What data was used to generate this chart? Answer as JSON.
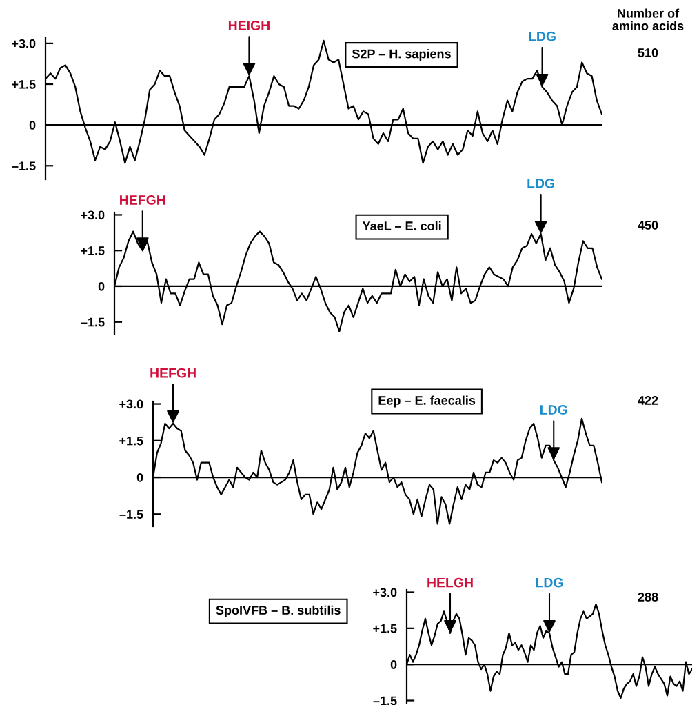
{
  "chart_data": [
    {
      "type": "line",
      "title": "S2P – H. sapiens",
      "color": "#000000",
      "ylim": [
        -2.0,
        3.2
      ],
      "tick_labels": "y",
      "yticks": [
        {
          "value": 3.0,
          "label": "+3.0"
        },
        {
          "value": 1.5,
          "label": "+1.5"
        },
        0,
        {
          "value": -1.5,
          "label": "–1.5"
        }
      ],
      "ref_lines": [
        {
          "axis": "y",
          "value": 0,
          "color": "#000000"
        }
      ],
      "categories": [
        null,
        null,
        null,
        null,
        null,
        null,
        null,
        null,
        null,
        null,
        null,
        null,
        null,
        null,
        null,
        null,
        null,
        null,
        null,
        null,
        null,
        null,
        null,
        null,
        null,
        null,
        null,
        null,
        null,
        null,
        null,
        null,
        null,
        null,
        null,
        null,
        null,
        null,
        null,
        null,
        null,
        null,
        null,
        null,
        null,
        null,
        null,
        null,
        null,
        null,
        null,
        null,
        null,
        null,
        null,
        null,
        null,
        null,
        null,
        null,
        null,
        null,
        null,
        null,
        null,
        null,
        null,
        null,
        null,
        null,
        null,
        null,
        null,
        null,
        null,
        null,
        null,
        null,
        null,
        null,
        null,
        null,
        null,
        null,
        null,
        null,
        null,
        null,
        null,
        null,
        null,
        null,
        null,
        null,
        null,
        null,
        null,
        null,
        null,
        null,
        null,
        null,
        null,
        null,
        null,
        null,
        null,
        null,
        null,
        null,
        null,
        null,
        null
      ],
      "values": [
        1.7,
        1.9,
        1.7,
        2.1,
        2.2,
        1.9,
        1.4,
        0.5,
        -0.1,
        -0.6,
        -1.3,
        -0.8,
        -0.9,
        -0.6,
        0.1,
        -0.6,
        -1.4,
        -0.8,
        -1.3,
        -0.6,
        0.2,
        1.3,
        1.5,
        2.0,
        1.8,
        1.8,
        1.2,
        0.7,
        -0.2,
        -0.4,
        -0.6,
        -0.8,
        -1.1,
        -0.5,
        0.2,
        0.4,
        0.8,
        1.4,
        1.4,
        1.4,
        1.4,
        1.8,
        0.9,
        -0.3,
        0.7,
        1.2,
        1.8,
        1.5,
        1.4,
        0.7,
        0.7,
        0.6,
        0.9,
        1.4,
        2.2,
        2.4,
        3.1,
        2.4,
        2.3,
        2.4,
        1.5,
        0.6,
        0.7,
        0.2,
        0.5,
        0.4,
        -0.5,
        -0.7,
        -0.3,
        -0.6,
        0.2,
        0.2,
        0.6,
        -0.3,
        -0.5,
        -0.5,
        -1.4,
        -0.8,
        -0.6,
        -0.9,
        -0.6,
        -1.1,
        -0.7,
        -1.1,
        -0.9,
        -0.2,
        -0.4,
        0.5,
        -0.3,
        -0.6,
        -0.2,
        -0.7,
        0.2,
        0.9,
        0.5,
        1.2,
        1.6,
        1.7,
        1.7,
        2.0,
        1.4,
        1.2,
        0.9,
        0.7,
        0.0,
        0.7,
        1.2,
        1.4,
        2.3,
        1.9,
        1.8,
        0.9,
        0.4
      ],
      "annotations": [
        "HEIGH",
        "LDG",
        "Number of\namino acids",
        "510"
      ]
    },
    {
      "type": "line",
      "title": "YaeL – E. coli",
      "color": "#000000",
      "ylim": [
        -2.0,
        3.1
      ],
      "tick_labels": "y",
      "yticks": [
        {
          "value": 3.0,
          "label": "+3.0"
        },
        {
          "value": 1.5,
          "label": "+1.5"
        },
        0,
        {
          "value": -1.5,
          "label": "–1.5"
        }
      ],
      "ref_lines": [
        {
          "axis": "y",
          "value": 0,
          "color": "#000000"
        }
      ],
      "categories": [
        null,
        null,
        null,
        null,
        null,
        null,
        null,
        null,
        null,
        null,
        null,
        null,
        null,
        null,
        null,
        null,
        null,
        null,
        null,
        null,
        null,
        null,
        null,
        null,
        null,
        null,
        null,
        null,
        null,
        null,
        null,
        null,
        null,
        null,
        null,
        null,
        null,
        null,
        null,
        null,
        null,
        null,
        null,
        null,
        null,
        null,
        null,
        null,
        null,
        null,
        null,
        null,
        null,
        null,
        null,
        null,
        null,
        null,
        null,
        null,
        null,
        null,
        null,
        null,
        null,
        null,
        null,
        null,
        null,
        null,
        null,
        null,
        null,
        null,
        null,
        null,
        null,
        null,
        null,
        null,
        null,
        null,
        null,
        null,
        null,
        null,
        null,
        null,
        null,
        null,
        null,
        null,
        null,
        null,
        null,
        null,
        null,
        null,
        null,
        null,
        null,
        null,
        null,
        null,
        null
      ],
      "values": [
        0.0,
        0.8,
        1.2,
        1.9,
        2.3,
        1.8,
        1.5,
        1.9,
        1.0,
        0.5,
        -0.7,
        0.3,
        -0.3,
        -0.3,
        -0.8,
        -0.2,
        0.3,
        0.3,
        1.0,
        0.5,
        0.5,
        -0.4,
        -0.8,
        -1.6,
        -0.8,
        -0.7,
        0.0,
        0.6,
        1.3,
        1.8,
        2.1,
        2.3,
        2.1,
        1.8,
        1.0,
        0.9,
        0.6,
        0.2,
        -0.1,
        -0.6,
        -0.3,
        -0.6,
        -0.1,
        0.4,
        -0.1,
        -0.7,
        -1.1,
        -1.3,
        -1.9,
        -1.1,
        -0.8,
        -1.3,
        -0.7,
        -0.1,
        -0.7,
        -0.4,
        -0.7,
        -0.3,
        -0.3,
        -0.3,
        0.7,
        0.0,
        0.5,
        0.2,
        0.4,
        -0.8,
        0.3,
        -0.4,
        -0.7,
        0.6,
        0.0,
        0.3,
        -0.6,
        0.8,
        -0.3,
        -0.1,
        -0.7,
        -0.6,
        0.0,
        0.5,
        0.8,
        0.5,
        0.4,
        0.3,
        0.0,
        0.8,
        1.1,
        1.6,
        1.7,
        2.2,
        1.8,
        2.2,
        1.1,
        1.6,
        0.9,
        0.6,
        0.2,
        -0.7,
        -0.1,
        1.0,
        1.9,
        1.6,
        1.6,
        0.8,
        0.3
      ],
      "annotations": [
        "HEFGH",
        "LDG",
        "450"
      ]
    },
    {
      "type": "line",
      "title": "Eep – E. faecalis",
      "color": "#000000",
      "ylim": [
        -2.0,
        3.1
      ],
      "tick_labels": "y",
      "yticks": [
        {
          "value": 3.0,
          "label": "+3.0"
        },
        {
          "value": 1.5,
          "label": "+1.5"
        },
        0,
        {
          "value": -1.5,
          "label": "–1.5"
        }
      ],
      "ref_lines": [
        {
          "axis": "y",
          "value": 0,
          "color": "#000000"
        }
      ],
      "categories": [
        null,
        null,
        null,
        null,
        null,
        null,
        null,
        null,
        null,
        null,
        null,
        null,
        null,
        null,
        null,
        null,
        null,
        null,
        null,
        null,
        null,
        null,
        null,
        null,
        null,
        null,
        null,
        null,
        null,
        null,
        null,
        null,
        null,
        null,
        null,
        null,
        null,
        null,
        null,
        null,
        null,
        null,
        null,
        null,
        null,
        null,
        null,
        null,
        null,
        null,
        null,
        null,
        null,
        null,
        null,
        null,
        null,
        null,
        null,
        null,
        null,
        null,
        null,
        null,
        null,
        null,
        null,
        null,
        null,
        null,
        null,
        null,
        null,
        null,
        null,
        null,
        null,
        null,
        null,
        null,
        null,
        null,
        null,
        null,
        null,
        null,
        null,
        null,
        null,
        null,
        null,
        null,
        null,
        null,
        null,
        null,
        null,
        null,
        null,
        null,
        null,
        null,
        null,
        null,
        null,
        null,
        null,
        null,
        null,
        null,
        null,
        null,
        null
      ],
      "values": [
        0.0,
        1.0,
        1.4,
        2.2,
        2.0,
        2.2,
        2.0,
        1.9,
        1.1,
        0.9,
        0.6,
        -0.1,
        0.6,
        0.6,
        0.6,
        0.0,
        -0.4,
        -0.7,
        -0.4,
        -0.1,
        -0.4,
        0.4,
        0.2,
        0.0,
        -0.1,
        0.2,
        0.0,
        1.1,
        0.6,
        0.3,
        -0.2,
        -0.3,
        -0.2,
        -0.1,
        0.2,
        0.7,
        -0.2,
        -0.9,
        -0.7,
        -0.7,
        -1.5,
        -1.0,
        -1.3,
        -0.9,
        -0.5,
        0.4,
        -0.5,
        -0.2,
        0.4,
        -0.4,
        0.2,
        1.0,
        1.3,
        1.8,
        1.6,
        1.9,
        1.1,
        0.3,
        0.6,
        -0.2,
        0.0,
        -0.4,
        -0.2,
        -0.7,
        -0.9,
        -1.5,
        -0.9,
        -1.6,
        -0.9,
        -0.3,
        -0.5,
        -1.9,
        -0.8,
        -1.1,
        -1.9,
        -1.1,
        -0.4,
        -0.9,
        -0.3,
        -0.5,
        0.2,
        -0.3,
        -0.4,
        0.2,
        0.2,
        0.7,
        0.6,
        0.8,
        0.6,
        0.2,
        -0.1,
        0.7,
        0.8,
        1.5,
        2.0,
        2.2,
        1.6,
        0.8,
        1.3,
        1.3,
        0.7,
        0.4,
        0.0,
        -0.4,
        0.2,
        0.9,
        1.5,
        2.4,
        1.8,
        1.3,
        1.3,
        0.6,
        -0.2
      ],
      "annotations": [
        "HEFGH",
        "LDG",
        "422"
      ]
    },
    {
      "type": "line",
      "title": "SpoIVFB – B. subtilis",
      "color": "#000000",
      "ylim": [
        -1.6,
        3.1
      ],
      "tick_labels": "y",
      "yticks": [
        {
          "value": 3.0,
          "label": "+3.0"
        },
        {
          "value": 1.5,
          "label": "+1.5"
        },
        0,
        {
          "value": -1.5,
          "label": "–1.5"
        }
      ],
      "ref_lines": [
        {
          "axis": "y",
          "value": 0,
          "color": "#000000"
        }
      ],
      "categories": [
        null,
        null,
        null,
        null,
        null,
        null,
        null,
        null,
        null,
        null,
        null,
        null,
        null,
        null,
        null,
        null,
        null,
        null,
        null,
        null,
        null,
        null,
        null,
        null,
        null,
        null,
        null,
        null,
        null,
        null,
        null,
        null,
        null,
        null,
        null,
        null,
        null,
        null,
        null,
        null,
        null,
        null,
        null,
        null,
        null,
        null,
        null,
        null,
        null,
        null,
        null,
        null,
        null,
        null,
        null,
        null,
        null,
        null,
        null,
        null,
        null,
        null,
        null,
        null,
        null,
        null,
        null,
        null,
        null,
        null,
        null,
        null,
        null,
        null,
        null,
        null,
        null,
        null,
        null,
        null,
        null,
        null,
        null,
        null,
        null,
        null,
        null,
        null,
        null,
        null,
        null,
        null,
        null
      ],
      "values": [
        0.0,
        0.4,
        0.1,
        0.4,
        0.8,
        1.4,
        1.9,
        1.3,
        0.8,
        1.2,
        1.7,
        1.8,
        2.2,
        1.8,
        1.3,
        1.8,
        2.1,
        1.9,
        1.2,
        0.4,
        1.1,
        1.0,
        0.8,
        0.1,
        -0.2,
        0.0,
        -0.4,
        -1.1,
        -0.5,
        -0.3,
        -0.4,
        0.4,
        0.7,
        1.3,
        0.8,
        0.9,
        0.6,
        0.8,
        0.5,
        0.1,
        0.8,
        0.6,
        1.3,
        1.6,
        1.1,
        1.4,
        1.3,
        0.7,
        0.3,
        -0.1,
        0.1,
        -0.4,
        -0.4,
        0.4,
        0.5,
        1.3,
        1.9,
        2.2,
        1.9,
        2.0,
        2.1,
        2.5,
        2.1,
        1.4,
        0.8,
        0.4,
        -0.1,
        -0.5,
        -1.1,
        -1.4,
        -1.0,
        -0.8,
        -0.7,
        -0.4,
        -0.9,
        -0.5,
        0.3,
        -0.1,
        -0.9,
        -0.4,
        -0.1,
        -0.4,
        -0.6,
        -0.8,
        -1.3,
        -0.5,
        -0.8,
        -0.9,
        -0.7,
        -1.1,
        0.1,
        -0.4,
        -0.2
      ],
      "annotations": [
        "HELGH",
        "LDG",
        "288"
      ]
    }
  ]
}
